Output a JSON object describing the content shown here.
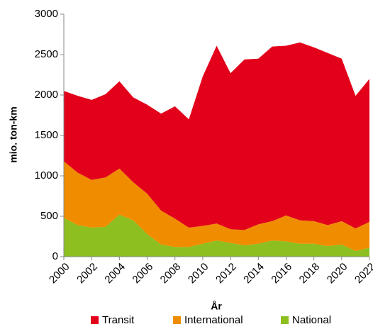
{
  "chart_data": {
    "type": "stacked_area",
    "x": [
      2000,
      2001,
      2002,
      2003,
      2004,
      2005,
      2006,
      2007,
      2008,
      2009,
      2010,
      2011,
      2012,
      2013,
      2014,
      2015,
      2016,
      2017,
      2018,
      2019,
      2020,
      2021,
      2022
    ],
    "series": [
      {
        "name": "Transit",
        "color": "#e2001a",
        "values": [
          870,
          950,
          990,
          1030,
          1080,
          1050,
          1100,
          1200,
          1390,
          1340,
          1850,
          2200,
          1930,
          2110,
          2050,
          2160,
          2100,
          2200,
          2150,
          2130,
          2010,
          1640,
          1770
        ]
      },
      {
        "name": "International",
        "color": "#f08c00",
        "values": [
          700,
          650,
          590,
          610,
          570,
          470,
          500,
          420,
          350,
          240,
          220,
          210,
          170,
          190,
          240,
          240,
          320,
          290,
          280,
          260,
          290,
          280,
          320
        ]
      },
      {
        "name": "National",
        "color": "#8cbf1f",
        "values": [
          480,
          390,
          360,
          370,
          520,
          450,
          280,
          150,
          120,
          120,
          160,
          200,
          170,
          140,
          160,
          200,
          190,
          160,
          160,
          130,
          150,
          70,
          110
        ]
      }
    ],
    "xlabel": "År",
    "ylabel": "mio. ton-km",
    "xlim": [
      2000,
      2022
    ],
    "xticks": [
      2000,
      2002,
      2004,
      2006,
      2008,
      2010,
      2012,
      2014,
      2016,
      2018,
      2020,
      2022
    ],
    "ylim": [
      0,
      3000
    ],
    "yticks": [
      0,
      500,
      1000,
      1500,
      2000,
      2500,
      3000
    ],
    "legend": "bottom"
  }
}
